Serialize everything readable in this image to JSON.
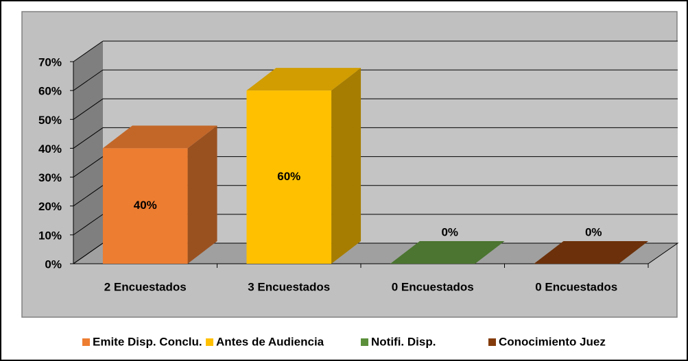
{
  "chart_data": {
    "type": "bar3d",
    "categories": [
      "2 Encuestados",
      "3 Encuestados",
      "0 Encuestados",
      "0 Encuestados"
    ],
    "values": [
      40,
      60,
      0,
      0
    ],
    "value_labels": [
      "40%",
      "60%",
      "0%",
      "0%"
    ],
    "legend": [
      "Emite Disp. Conclu.",
      "Antes de Audiencia",
      "Notifi. Disp.",
      "Conocimiento Juez"
    ],
    "colors": [
      "#ed7d31",
      "#ffc000",
      "#5b8f3a",
      "#843c0c"
    ],
    "ylim": [
      0,
      70
    ],
    "yticks": [
      {
        "value": 0,
        "label": "0%"
      },
      {
        "value": 10,
        "label": "10%"
      },
      {
        "value": 20,
        "label": "20%"
      },
      {
        "value": 30,
        "label": "30%"
      },
      {
        "value": 40,
        "label": "40%"
      },
      {
        "value": 50,
        "label": "50%"
      },
      {
        "value": 60,
        "label": "60%"
      },
      {
        "value": 70,
        "label": "70%"
      }
    ],
    "grid": true
  }
}
